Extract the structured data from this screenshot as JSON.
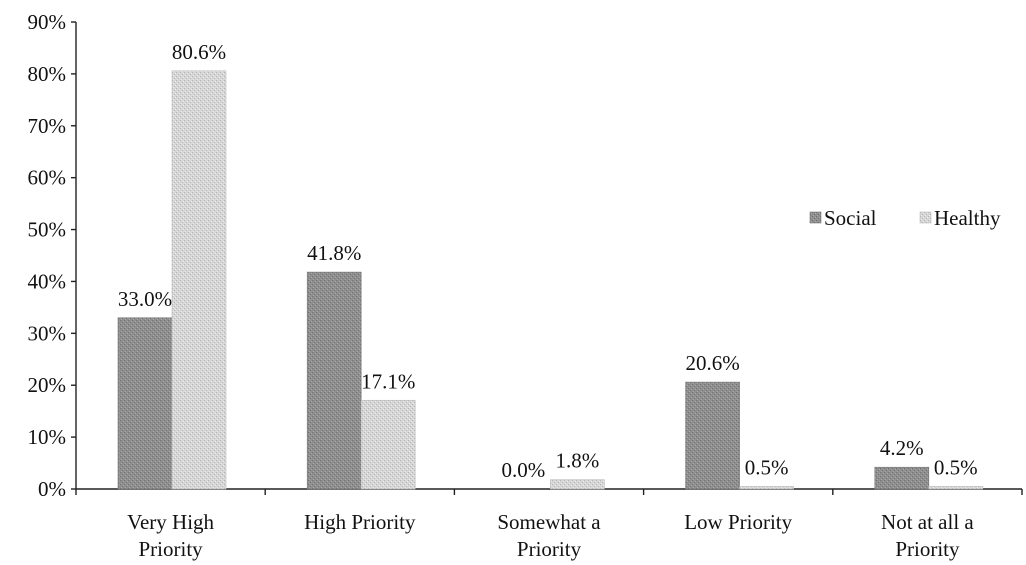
{
  "chart_data": {
    "type": "bar",
    "categories": [
      [
        "Very High",
        "Priority"
      ],
      [
        "High Priority"
      ],
      [
        "Somewhat a",
        "Priority"
      ],
      [
        "Low Priority"
      ],
      [
        "Not at all a",
        "Priority"
      ]
    ],
    "series": [
      {
        "name": "Social",
        "color": "#8c8c8c",
        "values": [
          33.0,
          41.8,
          0.0,
          20.6,
          4.2
        ],
        "labels": [
          "33.0%",
          "41.8%",
          "0.0%",
          "20.6%",
          "4.2%"
        ]
      },
      {
        "name": "Healthy",
        "color": "#d2d2d2",
        "values": [
          80.6,
          17.1,
          1.8,
          0.5,
          0.5
        ],
        "labels": [
          "80.6%",
          "17.1%",
          "1.8%",
          "0.5%",
          "0.5%"
        ]
      }
    ],
    "y_ticks": [
      "0%",
      "10%",
      "20%",
      "30%",
      "40%",
      "50%",
      "60%",
      "70%",
      "80%",
      "90%"
    ],
    "ylim": [
      0,
      90
    ],
    "title": "",
    "xlabel": "",
    "ylabel": "",
    "legend_position": "right",
    "grid": false
  }
}
